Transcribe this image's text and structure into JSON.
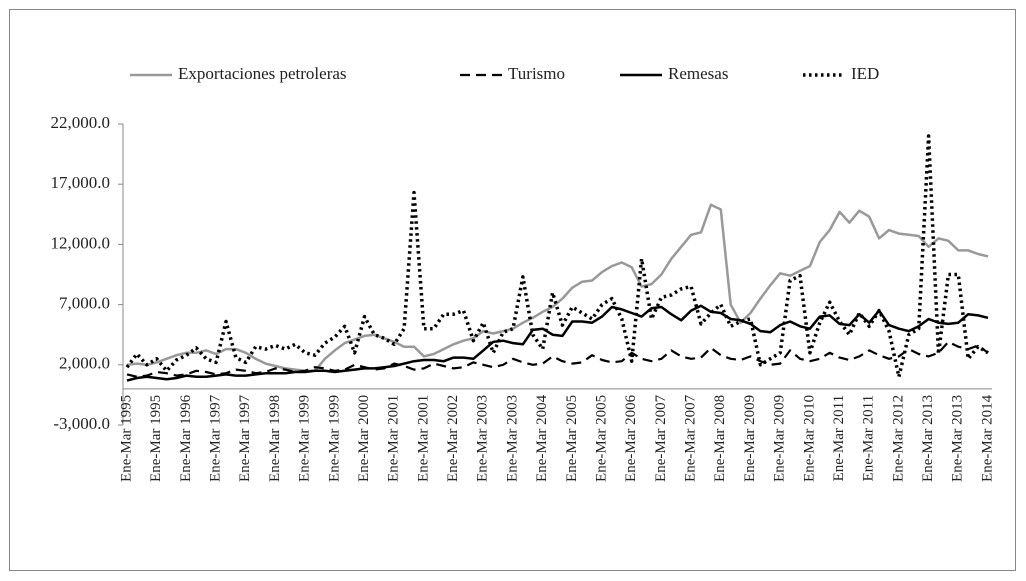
{
  "chart_data": {
    "type": "line",
    "categories": [
      "Ene-Mar 1995",
      null,
      null,
      "Ene-Mar 1995",
      null,
      null,
      "Ene-Mar 1996",
      null,
      null,
      "Ene-Mar 1997",
      null,
      null,
      "Ene-Mar 1997",
      null,
      null,
      "Ene-Mar 1998",
      null,
      null,
      "Ene-Mar 1999",
      null,
      null,
      "Ene-Mar 1999",
      null,
      null,
      "Ene-Mar 2000",
      null,
      null,
      "Ene-Mar 2001",
      null,
      null,
      "Ene-Mar 2001",
      null,
      null,
      "Ene-Mar 2002",
      null,
      null,
      "Ene-Mar 2003",
      null,
      null,
      "Ene-Mar 2003",
      null,
      null,
      "Ene-Mar 2004",
      null,
      null,
      "Ene-Mar 2005",
      null,
      null,
      "Ene-Mar 2005",
      null,
      null,
      "Ene-Mar 2006",
      null,
      null,
      "Ene-Mar 2007",
      null,
      null,
      "Ene-Mar 2007",
      null,
      null,
      "Ene-Mar 2008",
      null,
      null,
      "Ene-Mar 2009",
      null,
      null,
      "Ene-Mar 2009",
      null,
      null,
      "Ene-Mar 2010",
      null,
      null,
      "Ene-Mar 2011",
      null,
      null,
      "Ene-Mar 2011",
      null,
      null,
      "Ene-Mar 2012",
      null,
      null,
      "Ene-Mar 2013",
      null,
      null,
      "Ene-Mar 2013",
      null,
      null,
      "Ene-Mar 2014"
    ],
    "series": [
      {
        "name": "Exportaciones petroleras",
        "color": "#999999",
        "line_style": "solid",
        "values": [
          2000,
          2100,
          2000,
          2200,
          2500,
          2800,
          3000,
          3000,
          3200,
          2900,
          3300,
          3300,
          3000,
          2500,
          2100,
          1900,
          1700,
          1600,
          1500,
          1500,
          2500,
          3200,
          3800,
          4100,
          4400,
          4500,
          4200,
          3900,
          3500,
          3500,
          2700,
          2900,
          3300,
          3700,
          4000,
          4200,
          4800,
          4600,
          4800,
          5000,
          5500,
          5900,
          6400,
          6800,
          7500,
          8400,
          8900,
          9000,
          9700,
          10200,
          10500,
          10100,
          8500,
          8700,
          9500,
          10800,
          11800,
          12800,
          13000,
          15300,
          14900,
          7000,
          5500,
          6300,
          7500,
          8600,
          9600,
          9400,
          9800,
          10200,
          12200,
          13200,
          14700,
          13800,
          14800,
          14300,
          12500,
          13200,
          12900,
          12800,
          12700,
          11800,
          12500,
          12300,
          11500,
          11500,
          11200,
          11000
        ]
      },
      {
        "name": "Turismo",
        "color": "#000000",
        "line_style": "dashed",
        "values": [
          1200,
          1000,
          1100,
          1400,
          1300,
          1100,
          1200,
          1500,
          1400,
          1200,
          1300,
          1600,
          1500,
          1300,
          1400,
          1700,
          1600,
          1400,
          1500,
          1800,
          1700,
          1500,
          1600,
          2000,
          1800,
          1600,
          1700,
          2100,
          1900,
          1600,
          1700,
          2100,
          1900,
          1700,
          1800,
          2200,
          2000,
          1800,
          2000,
          2500,
          2200,
          2000,
          2100,
          2700,
          2300,
          2100,
          2200,
          2800,
          2400,
          2200,
          2300,
          3000,
          2500,
          2300,
          2500,
          3200,
          2700,
          2500,
          2600,
          3400,
          2800,
          2500,
          2400,
          2700,
          2300,
          2000,
          2100,
          3200,
          2500,
          2300,
          2500,
          3000,
          2600,
          2400,
          2700,
          3200,
          2800,
          2500,
          2700,
          3300,
          2900,
          2700,
          3000,
          3900,
          3500,
          3300,
          3600,
          3000
        ]
      },
      {
        "name": "Remesas",
        "color": "#000000",
        "line_style": "solid",
        "values": [
          700,
          900,
          1000,
          900,
          800,
          900,
          1100,
          1000,
          1000,
          1100,
          1200,
          1100,
          1100,
          1200,
          1300,
          1300,
          1300,
          1400,
          1400,
          1500,
          1500,
          1400,
          1500,
          1600,
          1700,
          1700,
          1800,
          1900,
          2100,
          2300,
          2400,
          2400,
          2300,
          2600,
          2600,
          2500,
          3200,
          3900,
          4000,
          3800,
          3700,
          4900,
          5000,
          4500,
          4400,
          5600,
          5600,
          5500,
          6000,
          6800,
          6600,
          6300,
          6000,
          6700,
          6800,
          6200,
          5700,
          6500,
          6900,
          6400,
          6300,
          5800,
          5700,
          5400,
          4800,
          4700,
          5300,
          5600,
          5200,
          5000,
          6000,
          6100,
          5400,
          5300,
          6200,
          5500,
          6500,
          5300,
          5000,
          4800,
          5200,
          5800,
          5500,
          5400,
          5500,
          6200,
          6100,
          5900
        ]
      },
      {
        "name": "IED",
        "color": "#000000",
        "line_style": "dotted",
        "values": [
          1800,
          2900,
          2000,
          2500,
          1500,
          2400,
          2800,
          3400,
          2500,
          2200,
          5600,
          2600,
          2200,
          3500,
          3300,
          3600,
          3300,
          3700,
          3000,
          2800,
          3800,
          4300,
          5200,
          3000,
          6000,
          4500,
          4200,
          3700,
          5000,
          16300,
          5000,
          5000,
          6200,
          6200,
          6500,
          4000,
          5500,
          3000,
          4700,
          5000,
          9300,
          4500,
          3300,
          8000,
          5300,
          6800,
          6300,
          5800,
          7000,
          7500,
          5800,
          2300,
          10800,
          5800,
          7600,
          7800,
          8300,
          8500,
          5400,
          6300,
          7000,
          5200,
          5600,
          5800,
          2000,
          2500,
          3000,
          9000,
          9400,
          3000,
          5500,
          7200,
          5600,
          4500,
          6300,
          5200,
          6500,
          4800,
          1000,
          4500,
          5000,
          21000,
          2900,
          9500,
          9500,
          2500,
          3500,
          3000
        ]
      }
    ],
    "ylim": [
      -3000,
      22000
    ],
    "yticks": [
      {
        "value": -3000,
        "label": "-3,000.0"
      },
      {
        "value": 2000,
        "label": "2,000.0"
      },
      {
        "value": 7000,
        "label": "7,000.0"
      },
      {
        "value": 12000,
        "label": "12,000.0"
      },
      {
        "value": 17000,
        "label": "17,000.0"
      },
      {
        "value": 22000,
        "label": "22,000.0"
      }
    ],
    "grid": false,
    "legend": "top"
  }
}
